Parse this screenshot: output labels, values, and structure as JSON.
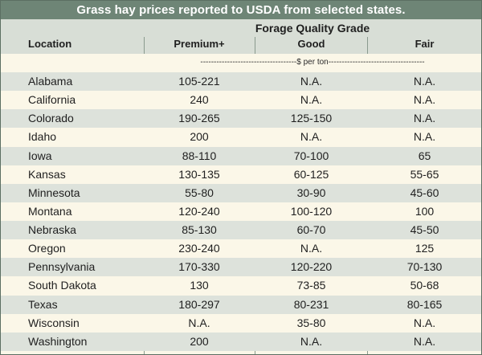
{
  "title": "Grass hay prices reported to USDA from selected states.",
  "group_header": "Forage Quality Grade",
  "columns": {
    "location": "Location",
    "premium": "Premium+",
    "good": "Good",
    "fair": "Fair"
  },
  "unit_note": "------------------------------------$ per ton------------------------------------",
  "rows": [
    {
      "location": "Alabama",
      "premium": "105-221",
      "good": "N.A.",
      "fair": "N.A."
    },
    {
      "location": "California",
      "premium": "240",
      "good": "N.A.",
      "fair": "N.A."
    },
    {
      "location": "Colorado",
      "premium": "190-265",
      "good": "125-150",
      "fair": "N.A."
    },
    {
      "location": "Idaho",
      "premium": "200",
      "good": "N.A.",
      "fair": "N.A."
    },
    {
      "location": "Iowa",
      "premium": "88-110",
      "good": "70-100",
      "fair": "65"
    },
    {
      "location": "Kansas",
      "premium": "130-135",
      "good": "60-125",
      "fair": "55-65"
    },
    {
      "location": "Minnesota",
      "premium": "55-80",
      "good": "30-90",
      "fair": "45-60"
    },
    {
      "location": "Montana",
      "premium": "120-240",
      "good": "100-120",
      "fair": "100"
    },
    {
      "location": "Nebraska",
      "premium": "85-130",
      "good": "60-70",
      "fair": "45-50"
    },
    {
      "location": "Oregon",
      "premium": "230-240",
      "good": "N.A.",
      "fair": "125"
    },
    {
      "location": "Pennsylvania",
      "premium": "170-330",
      "good": "120-220",
      "fair": "70-130"
    },
    {
      "location": "South Dakota",
      "premium": "130",
      "good": "73-85",
      "fair": "50-68"
    },
    {
      "location": "Texas",
      "premium": "180-297",
      "good": "80-231",
      "fair": "80-165"
    },
    {
      "location": "Wisconsin",
      "premium": "N.A.",
      "good": "35-80",
      "fair": "N.A."
    },
    {
      "location": "Washington",
      "premium": "200",
      "good": "N.A.",
      "fair": "N.A."
    }
  ],
  "colors": {
    "title_bar": "#6e8576",
    "header_bg": "#d8ded6",
    "row_shade": "#dde2db",
    "row_plain": "#fbf7e8",
    "rule": "#8a9a8e"
  }
}
